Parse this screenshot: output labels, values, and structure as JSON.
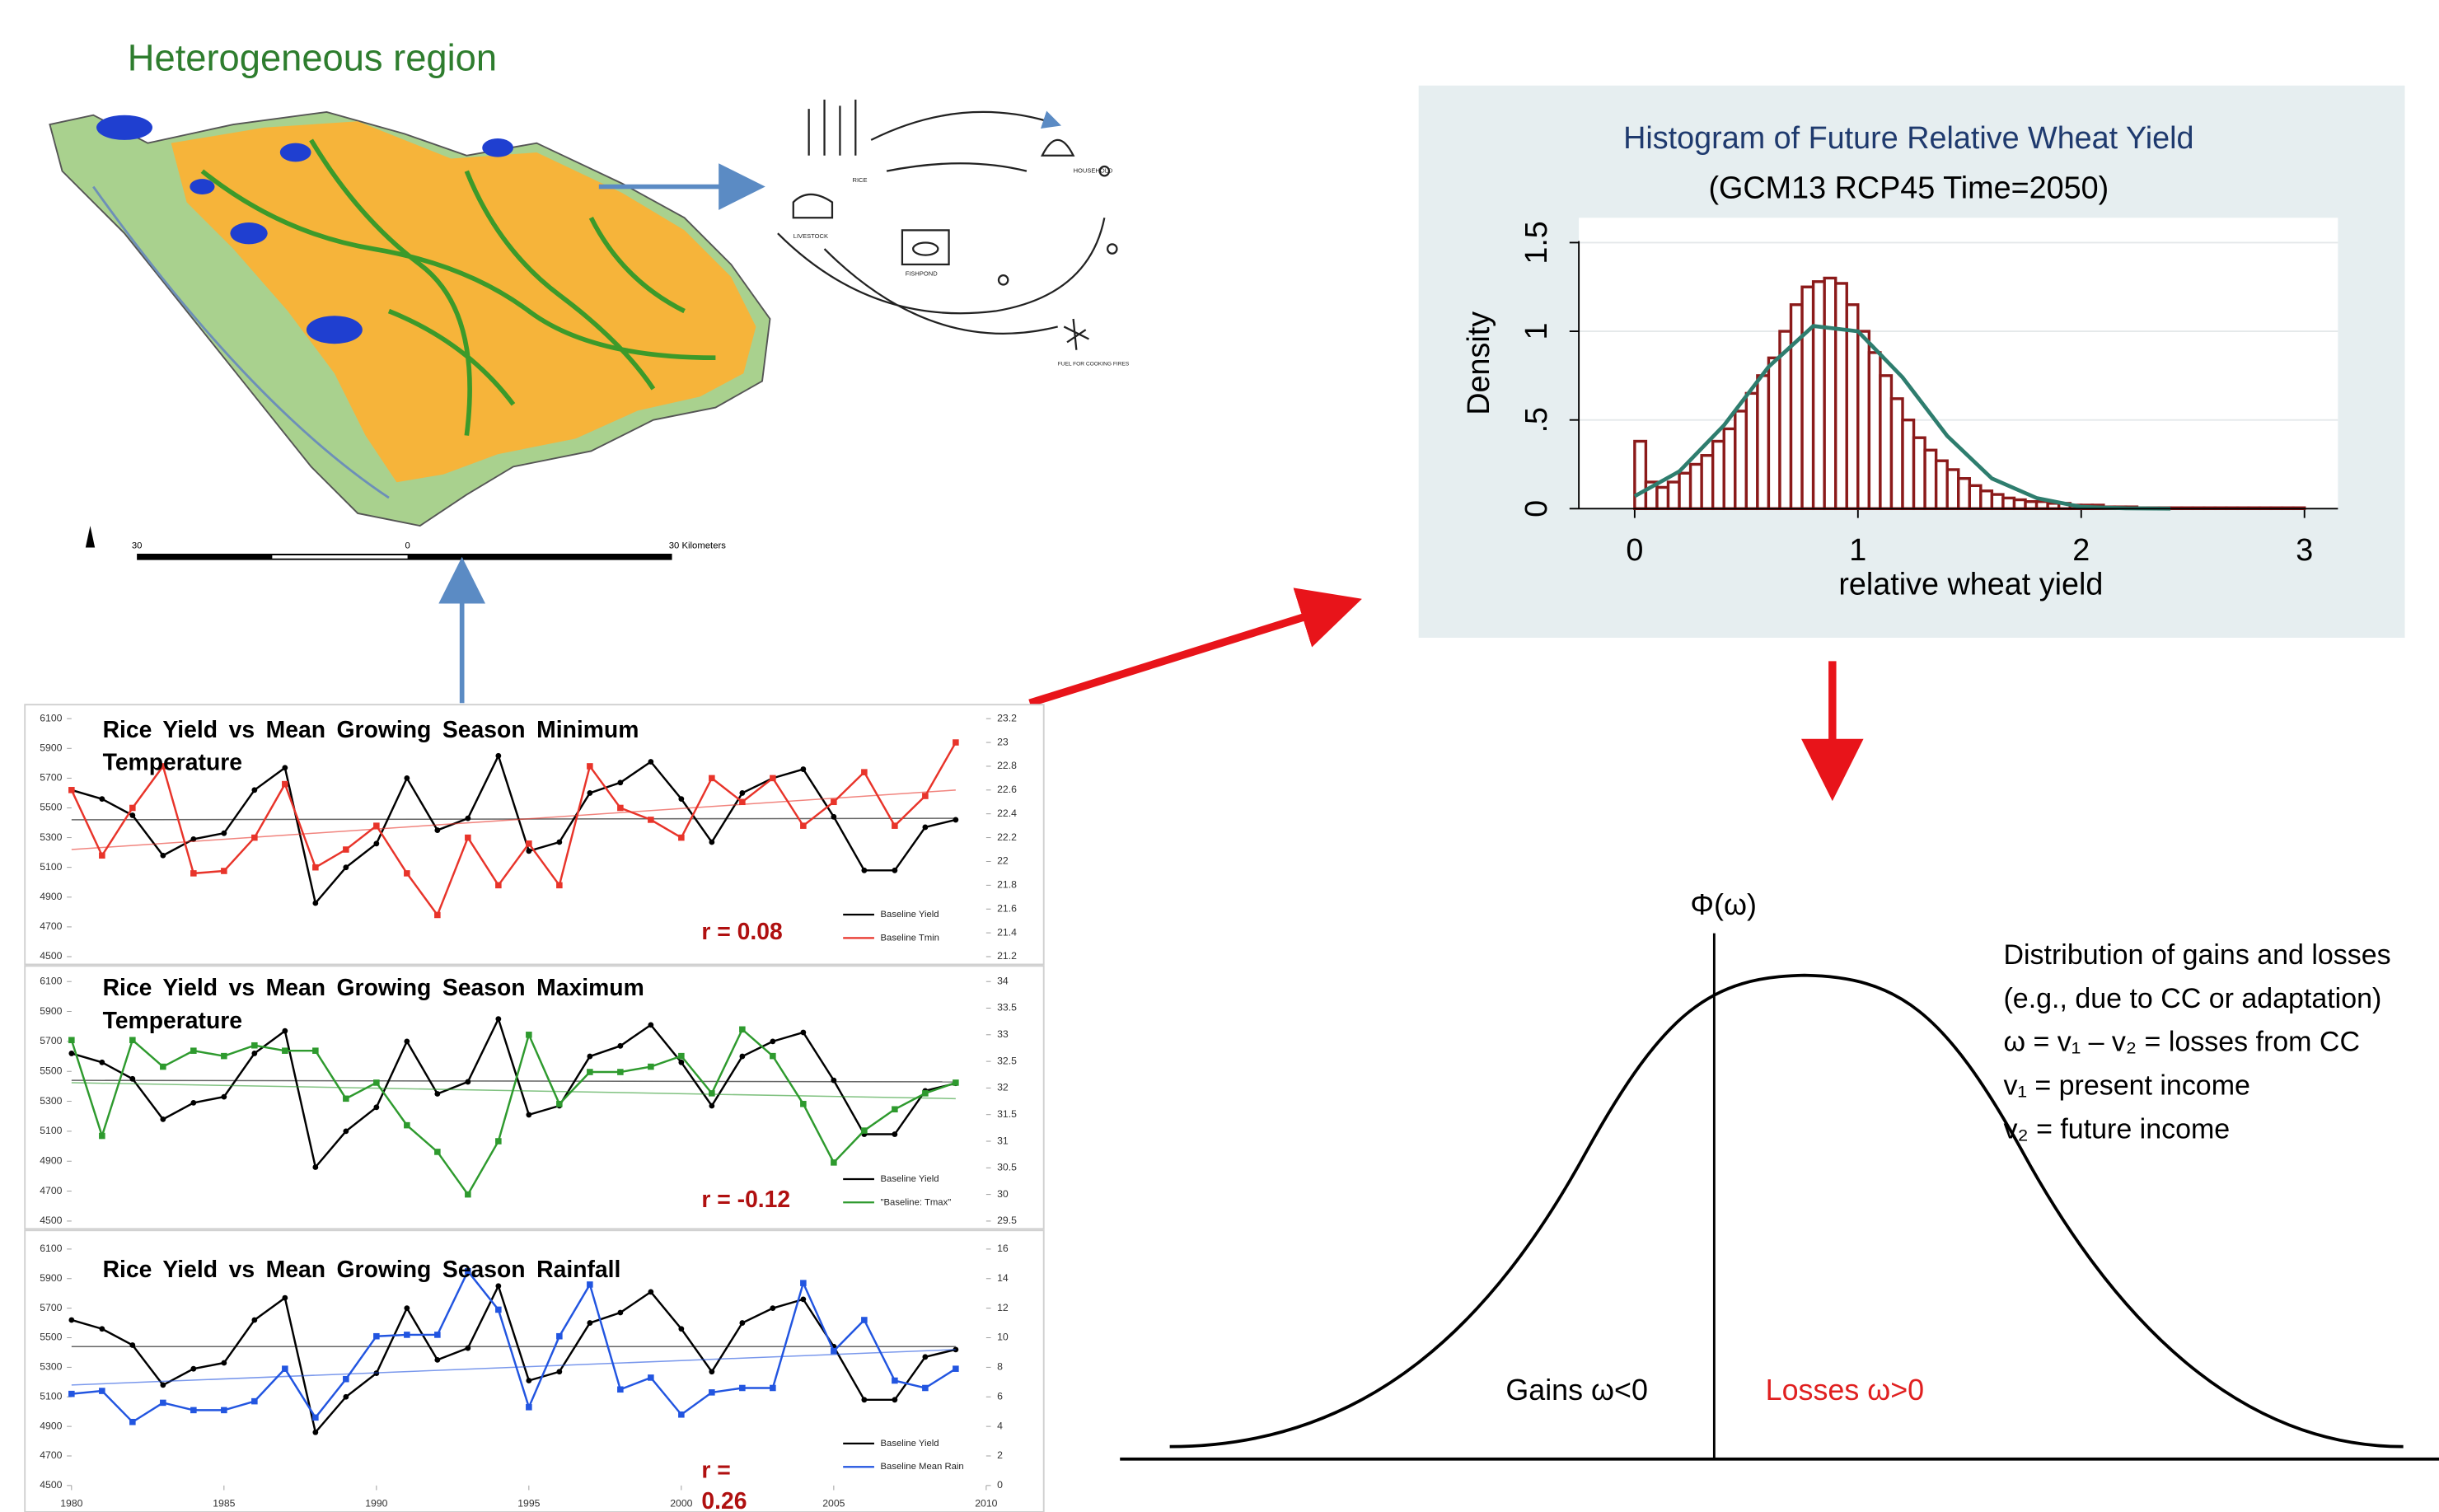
{
  "header": {
    "title": "Heterogeneous region"
  },
  "map": {
    "scale_labels": [
      "30",
      "0",
      "30 Kilometers"
    ]
  },
  "sketch": {
    "labels": [
      "RICE",
      "LIVESTOCK",
      "HOUSEHOLD",
      "FISHPOND",
      "FUEL FOR COOKING FIRES"
    ]
  },
  "chart_data": [
    {
      "type": "histogram",
      "title": "Histogram of Future Relative Wheat Yield",
      "subtitle": "(GCM13 RCP45 Time=2050)",
      "x_label": "relative wheat yield",
      "y_label": "Density",
      "bins": [
        0,
        0.05,
        0.1,
        0.15,
        0.2,
        0.25,
        0.3,
        0.35,
        0.4,
        0.45,
        0.5,
        0.55,
        0.6,
        0.65,
        0.7,
        0.75,
        0.8,
        0.85,
        0.9,
        0.95,
        1,
        1.05,
        1.1,
        1.15,
        1.2,
        1.25,
        1.3,
        1.35,
        1.4,
        1.45,
        1.5,
        1.55,
        1.6,
        1.65,
        1.7,
        1.75,
        1.8,
        1.85,
        1.9,
        1.95,
        2,
        2.05,
        2.1,
        2.15,
        2.2,
        2.25,
        2.3,
        2.35,
        2.4,
        2.45,
        2.5,
        2.55,
        2.6,
        2.65,
        2.7,
        2.75,
        2.8,
        2.85,
        2.9,
        2.95,
        3
      ],
      "values": [
        0.38,
        0.15,
        0.12,
        0.15,
        0.2,
        0.25,
        0.3,
        0.38,
        0.45,
        0.55,
        0.65,
        0.75,
        0.85,
        1.0,
        1.15,
        1.25,
        1.28,
        1.3,
        1.27,
        1.15,
        1.0,
        0.88,
        0.75,
        0.62,
        0.5,
        0.4,
        0.33,
        0.27,
        0.22,
        0.17,
        0.13,
        0.1,
        0.08,
        0.06,
        0.05,
        0.04,
        0.04,
        0.03,
        0.03,
        0.02,
        0.02,
        0.02,
        0.01,
        0.01,
        0.01,
        0.005,
        0.005,
        0.005,
        0.005,
        0.005,
        0.005,
        0.005,
        0.005,
        0.005,
        0.005,
        0.005,
        0.005,
        0.005,
        0.005,
        0.005
      ],
      "color": "#8b1a1a",
      "curve": {
        "x": [
          0,
          0.2,
          0.4,
          0.6,
          0.8,
          1.0,
          1.2,
          1.4,
          1.6,
          1.8,
          2.0,
          2.2,
          2.4
        ],
        "values": [
          0.07,
          0.21,
          0.47,
          0.8,
          1.03,
          1.0,
          0.74,
          0.41,
          0.17,
          0.06,
          0.01,
          0.002,
          0
        ],
        "color": "#2e7d6e"
      },
      "xlim": [
        -0.25,
        3.15
      ],
      "xticks": [
        0,
        1,
        2,
        3
      ],
      "ylim": [
        0,
        1.64
      ],
      "yticks": [
        0,
        {
          "value": 0.5,
          "label": ".5"
        },
        1,
        1.5
      ],
      "grid": true
    },
    {
      "type": "line",
      "title": "Rice Yield vs Mean Growing Season Minimum Temperature",
      "x": [
        1980,
        1981,
        1982,
        1983,
        1984,
        1985,
        1986,
        1987,
        1988,
        1989,
        1990,
        1991,
        1992,
        1993,
        1994,
        1995,
        1996,
        1997,
        1998,
        1999,
        2000,
        2001,
        2002,
        2003,
        2004,
        2005,
        2006,
        2007,
        2008,
        2009
      ],
      "xlim": [
        1980,
        2010
      ],
      "ylim": [
        4500,
        6100
      ],
      "yticks": [
        4500,
        4700,
        4900,
        5100,
        5300,
        5500,
        5700,
        5900,
        6100
      ],
      "y2lim": [
        21.2,
        23.2
      ],
      "y2ticks": [
        21.2,
        21.4,
        21.6,
        21.8,
        22,
        22.2,
        22.4,
        22.6,
        22.8,
        23,
        23.2
      ],
      "series": [
        {
          "name": "Baseline Yield",
          "color": "#000000",
          "values": [
            5620,
            5560,
            5450,
            5180,
            5290,
            5330,
            5620,
            5770,
            4860,
            5100,
            5260,
            5700,
            5350,
            5430,
            5850,
            5210,
            5270,
            5600,
            5670,
            5810,
            5560,
            5270,
            5600,
            5700,
            5760,
            5440,
            5080,
            5080,
            5370,
            5420
          ],
          "trend": [
            5420,
            5430
          ]
        },
        {
          "name": "Baseline Tmin",
          "color": "#e8342a",
          "axis": "y2",
          "values": [
            22.6,
            22.05,
            22.45,
            22.8,
            21.9,
            21.92,
            22.2,
            22.65,
            21.95,
            22.1,
            22.3,
            21.9,
            21.55,
            22.2,
            21.8,
            22.15,
            21.8,
            22.8,
            22.45,
            22.35,
            22.2,
            22.7,
            22.5,
            22.7,
            22.3,
            22.5,
            22.75,
            22.3,
            22.55,
            23.0
          ],
          "trend": [
            22.1,
            22.6
          ]
        }
      ],
      "annotation": [
        "r = 0.08"
      ]
    },
    {
      "type": "line",
      "title": "Rice Yield vs Mean Growing Season Maximum Temperature",
      "x": [
        1980,
        1981,
        1982,
        1983,
        1984,
        1985,
        1986,
        1987,
        1988,
        1989,
        1990,
        1991,
        1992,
        1993,
        1994,
        1995,
        1996,
        1997,
        1998,
        1999,
        2000,
        2001,
        2002,
        2003,
        2004,
        2005,
        2006,
        2007,
        2008,
        2009
      ],
      "xlim": [
        1980,
        2010
      ],
      "ylim": [
        4500,
        6100
      ],
      "yticks": [
        4500,
        4700,
        4900,
        5100,
        5300,
        5500,
        5700,
        5900,
        6100
      ],
      "y2lim": [
        29.5,
        34
      ],
      "y2ticks": [
        29.5,
        30,
        30.5,
        31,
        31.5,
        32,
        32.5,
        33,
        33.5,
        34
      ],
      "series": [
        {
          "name": "Baseline Yield",
          "color": "#000000",
          "values": [
            5620,
            5560,
            5450,
            5180,
            5290,
            5330,
            5620,
            5770,
            4860,
            5100,
            5260,
            5700,
            5350,
            5430,
            5850,
            5210,
            5270,
            5600,
            5670,
            5810,
            5560,
            5270,
            5600,
            5700,
            5760,
            5440,
            5080,
            5080,
            5370,
            5420
          ],
          "trend": [
            5440,
            5430
          ]
        },
        {
          "name": "\"Baseline: Tmax\"",
          "color": "#2e9a2e",
          "axis": "y2",
          "values": [
            32.9,
            31.1,
            32.9,
            32.4,
            32.7,
            32.6,
            32.8,
            32.7,
            32.7,
            31.8,
            32.1,
            31.3,
            30.8,
            30.0,
            31.0,
            33.0,
            31.7,
            32.3,
            32.3,
            32.4,
            32.6,
            31.9,
            33.1,
            32.6,
            31.7,
            30.6,
            31.2,
            31.6,
            31.9,
            32.1
          ],
          "trend": [
            32.1,
            31.8
          ]
        }
      ],
      "annotation": [
        "r = -0.12"
      ]
    },
    {
      "type": "line",
      "title": "Rice Yield vs Mean Growing Season Rainfall",
      "x": [
        1980,
        1981,
        1982,
        1983,
        1984,
        1985,
        1986,
        1987,
        1988,
        1989,
        1990,
        1991,
        1992,
        1993,
        1994,
        1995,
        1996,
        1997,
        1998,
        1999,
        2000,
        2001,
        2002,
        2003,
        2004,
        2005,
        2006,
        2007,
        2008,
        2009
      ],
      "xlim": [
        1980,
        2010
      ],
      "xticks": [
        1980,
        1985,
        1990,
        1995,
        2000,
        2005,
        2010
      ],
      "ylim": [
        4500,
        6100
      ],
      "yticks": [
        4500,
        4700,
        4900,
        5100,
        5300,
        5500,
        5700,
        5900,
        6100
      ],
      "y2lim": [
        0,
        16
      ],
      "y2ticks": [
        0,
        2,
        4,
        6,
        8,
        10,
        12,
        14,
        16
      ],
      "series": [
        {
          "name": "Baseline Yield",
          "color": "#000000",
          "values": [
            5620,
            5560,
            5450,
            5180,
            5290,
            5330,
            5620,
            5770,
            4860,
            5100,
            5260,
            5700,
            5350,
            5430,
            5850,
            5210,
            5270,
            5600,
            5670,
            5810,
            5560,
            5270,
            5600,
            5700,
            5760,
            5440,
            5080,
            5080,
            5370,
            5420
          ],
          "trend": [
            5440,
            5440
          ]
        },
        {
          "name": "Baseline Mean Rain",
          "color": "#2255e0",
          "axis": "y2",
          "values": [
            6.2,
            6.4,
            4.3,
            5.6,
            5.1,
            5.1,
            5.7,
            7.9,
            4.6,
            7.2,
            10.1,
            10.2,
            10.2,
            14.5,
            11.9,
            5.3,
            10.1,
            13.6,
            6.5,
            7.3,
            4.8,
            6.3,
            6.6,
            6.6,
            13.7,
            9.1,
            11.2,
            7.1,
            6.6,
            7.9
          ],
          "trend": [
            6.8,
            9.2
          ]
        }
      ],
      "annotation": [
        "r =",
        "0.26"
      ]
    }
  ],
  "concept": {
    "axis_label": "Φ(ω)",
    "description": [
      "Distribution of gains and losses",
      "(e.g., due to CC or adaptation)",
      "ω = v₁ – v₂ = losses from CC",
      "v₁ = present income",
      "v₂ = future income"
    ],
    "gains": "Gains ω<0",
    "losses": "Losses ω>0"
  }
}
